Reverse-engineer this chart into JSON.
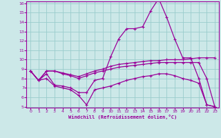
{
  "xlabel": "Windchill (Refroidissement éolien,°C)",
  "bg_color": "#cce8e8",
  "grid_color": "#99cccc",
  "line_color": "#990099",
  "x": [
    0,
    1,
    2,
    3,
    4,
    5,
    6,
    7,
    8,
    9,
    10,
    11,
    12,
    13,
    14,
    15,
    16,
    17,
    18,
    19,
    20,
    21,
    22,
    23
  ],
  "line1": [
    8.8,
    7.8,
    8.8,
    8.8,
    8.6,
    8.4,
    8.2,
    8.5,
    8.8,
    9.0,
    9.3,
    9.5,
    9.6,
    9.7,
    9.8,
    9.9,
    9.9,
    10.0,
    10.0,
    10.0,
    10.1,
    10.2,
    10.2,
    10.2
  ],
  "line2": [
    8.8,
    7.8,
    8.8,
    8.8,
    8.5,
    8.3,
    8.0,
    8.3,
    8.6,
    8.8,
    9.0,
    9.2,
    9.3,
    9.4,
    9.5,
    9.6,
    9.7,
    9.7,
    9.7,
    9.7,
    9.7,
    9.7,
    8.0,
    5.0
  ],
  "line3": [
    8.8,
    7.8,
    8.5,
    7.3,
    7.2,
    7.0,
    6.5,
    6.5,
    7.8,
    8.0,
    10.3,
    12.2,
    13.3,
    13.3,
    13.5,
    15.2,
    16.5,
    14.5,
    12.2,
    10.2,
    10.2,
    8.0,
    5.2,
    5.0
  ],
  "line4": [
    8.8,
    7.8,
    8.0,
    7.2,
    7.0,
    6.8,
    6.2,
    5.2,
    6.8,
    7.0,
    7.2,
    7.5,
    7.8,
    8.0,
    8.2,
    8.3,
    8.5,
    8.5,
    8.3,
    8.0,
    7.8,
    7.5,
    5.2,
    5.0
  ],
  "ylim": [
    5,
    16
  ],
  "xlim": [
    -0.5,
    23.5
  ],
  "yticks": [
    5,
    6,
    7,
    8,
    9,
    10,
    11,
    12,
    13,
    14,
    15,
    16
  ],
  "xticks": [
    0,
    1,
    2,
    3,
    4,
    5,
    6,
    7,
    8,
    9,
    10,
    11,
    12,
    13,
    14,
    15,
    16,
    17,
    18,
    19,
    20,
    21,
    22,
    23
  ]
}
